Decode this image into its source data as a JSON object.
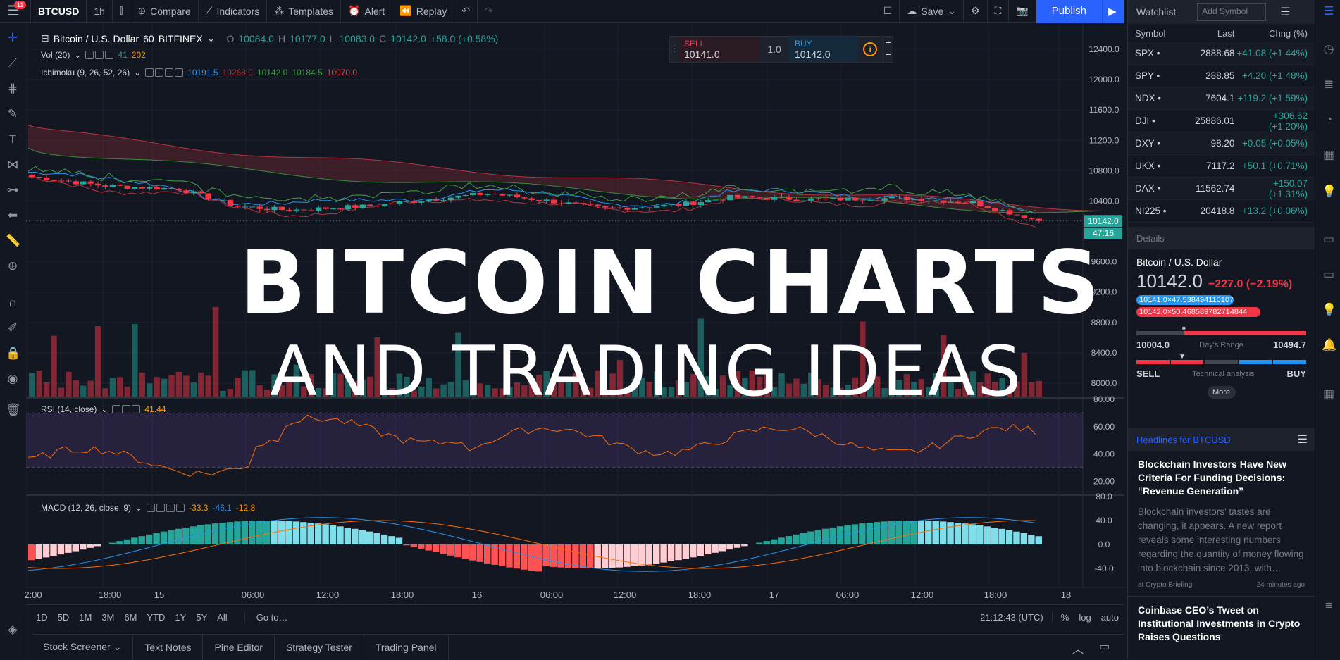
{
  "topbar": {
    "badge": "11",
    "symbol": "BTCUSD",
    "interval": "1h",
    "compare": "Compare",
    "indicators": "Indicators",
    "templates": "Templates",
    "alert": "Alert",
    "replay": "Replay",
    "save": "Save",
    "publish": "Publish"
  },
  "chart": {
    "title": "Bitcoin / U.S. Dollar",
    "resolution": "60",
    "exchange": "BITFINEX",
    "ohlc": {
      "o": "10084.0",
      "h": "10177.0",
      "l": "10083.0",
      "c": "10142.0",
      "chg": "+58.0 (+0.58%)"
    },
    "vol": {
      "label": "Vol (20)",
      "v1": "41",
      "v2": "202"
    },
    "ichimoku": {
      "label": "Ichimoku (9, 26, 52, 26)",
      "v1": "10191.5",
      "v2": "10268.0",
      "v3": "10142.0",
      "v4": "10184.5",
      "v5": "10070.0"
    },
    "rsi": {
      "label": "RSI (14, close)",
      "value": "41.44"
    },
    "macd": {
      "label": "MACD (12, 26, close, 9)",
      "v1": "-33.3",
      "v2": "-46.1",
      "v3": "-12.8"
    },
    "price_ticks": [
      "12400.0",
      "12000.0",
      "11600.0",
      "11200.0",
      "10800.0",
      "10400.0",
      "9600.0",
      "9200.0",
      "8800.0",
      "8400.0",
      "8000.0"
    ],
    "last_price": "10142.0",
    "countdown": "47:16",
    "rsi_ticks": [
      "80.00",
      "60.00",
      "40.00",
      "20.00"
    ],
    "macd_ticks": [
      "80.0",
      "40.0",
      "0.0",
      "-40.0"
    ],
    "time_ticks": [
      "2:00",
      "18:00",
      "15",
      "06:00",
      "12:00",
      "18:00",
      "16",
      "06:00",
      "12:00",
      "18:00",
      "17",
      "06:00",
      "12:00",
      "18:00",
      "18"
    ],
    "overlay_title": "BITCOIN CHARTS",
    "overlay_subtitle": "AND TRADING IDEAS"
  },
  "trade": {
    "sell_label": "SELL",
    "sell_price": "10141.0",
    "qty": "1.0",
    "buy_label": "BUY",
    "buy_price": "10142.0"
  },
  "ranges": [
    "1D",
    "5D",
    "1M",
    "3M",
    "6M",
    "YTD",
    "1Y",
    "5Y",
    "All"
  ],
  "goto": "Go to…",
  "clock": "21:12:43 (UTC)",
  "pct": "%",
  "log": "log",
  "auto": "auto",
  "bottom_tabs": [
    "Stock Screener",
    "Text Notes",
    "Pine Editor",
    "Strategy Tester",
    "Trading Panel"
  ],
  "watchlist": {
    "title": "Watchlist",
    "add_placeholder": "Add Symbol",
    "cols": [
      "Symbol",
      "Last",
      "Chng (%)"
    ],
    "rows": [
      {
        "s": "SPX",
        "l": "2888.68",
        "c": "+41.08 (+1.44%)"
      },
      {
        "s": "SPY",
        "l": "288.85",
        "c": "+4.20 (+1.48%)"
      },
      {
        "s": "NDX",
        "l": "7604.1",
        "c": "+119.2 (+1.59%)"
      },
      {
        "s": "DJI",
        "l": "25886.01",
        "c": "+306.62 (+1.20%)"
      },
      {
        "s": "DXY",
        "l": "98.20",
        "c": "+0.05 (+0.05%)"
      },
      {
        "s": "UKX",
        "l": "7117.2",
        "c": "+50.1 (+0.71%)"
      },
      {
        "s": "DAX",
        "l": "11562.74",
        "c": "+150.07 (+1.31%)"
      },
      {
        "s": "NI225",
        "l": "20418.8",
        "c": "+13.2 (+0.06%)"
      }
    ]
  },
  "details": {
    "title": "Details",
    "symbol": "Bitcoin / U.S. Dollar",
    "price": "10142.0",
    "change": "−227.0 (−2.19%)",
    "bid": "10141.0×47.53849411010742",
    "ask": "10142.0×50.468589782714844",
    "low": "10004.0",
    "range_label": "Day's Range",
    "high": "10494.7",
    "sell": "SELL",
    "ta_label": "Technical analysis",
    "buy": "BUY",
    "more": "More"
  },
  "news": {
    "title": "Headlines for BTCUSD",
    "h1": "Blockchain Investors Have New Criteria For Funding Decisions: “Revenue Generation”",
    "b1": "Blockchain investors’ tastes are changing, it appears. A new report reveals some interesting numbers regarding the quantity of money flowing into blockchain since 2013, with…",
    "src1": "at Crypto Briefing",
    "time1": "24 minutes ago",
    "h2": "Coinbase CEO’s Tweet on Institutional Investments in Crypto Raises Questions"
  },
  "colors": {
    "up": "#26a69a",
    "down": "#f23645",
    "accent": "#2962ff"
  }
}
